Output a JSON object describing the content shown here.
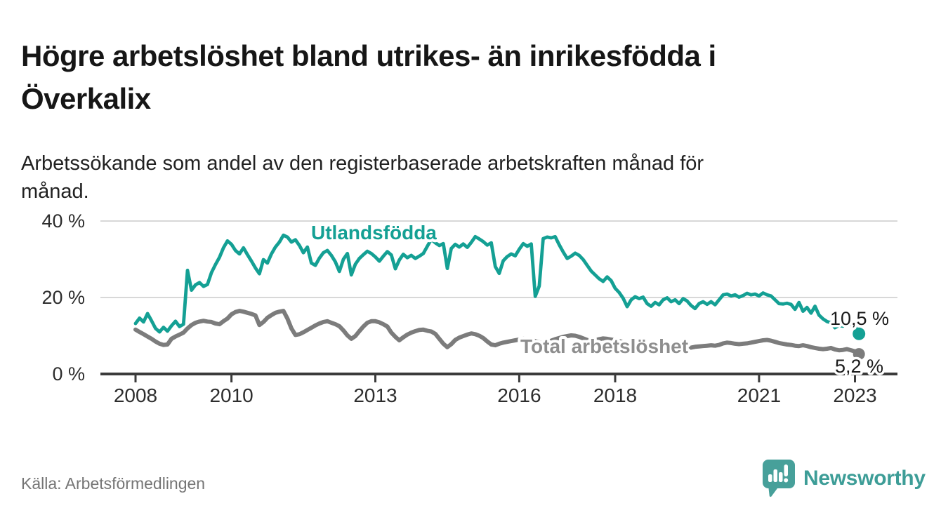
{
  "title": {
    "line1": "Högre arbetslöshet bland utrikes- än inrikesfödda i",
    "line2": "Överkalix"
  },
  "subtitle": {
    "line1": "Arbetssökande som andel av den registerbaserade arbetskraften månad för",
    "line2": "månad."
  },
  "source": "Källa: Arbetsförmedlingen",
  "branding": {
    "name": "Newsworthy",
    "icon": "newsworthy-speech-bubble-barchart-icon",
    "color": "#3d9d97",
    "icon_color": "#47a09a"
  },
  "colors": {
    "accent_teal": "#14a094",
    "line_gray": "#7c7c7c",
    "label_gray": "#8e8e8e",
    "axis": "#3b3b3b",
    "gridline": "#d8d8d8",
    "value_label": "#1a1a1a",
    "tick_label": "#2d2d2d"
  },
  "chart_data": {
    "type": "line",
    "unit": "%",
    "frequency": "monthly",
    "x_start": "2008-01",
    "x_end": "2023-02",
    "ylim": [
      0,
      44
    ],
    "grid": "horizontal-only",
    "legend_position": "inline-labels",
    "y_ticks": [
      {
        "label": "0 %",
        "value": 0
      },
      {
        "label": "20 %",
        "value": 20
      },
      {
        "label": "40 %",
        "value": 40
      }
    ],
    "x_ticks": [
      {
        "label": "2008",
        "year": 2008
      },
      {
        "label": "2010",
        "year": 2010
      },
      {
        "label": "2013",
        "year": 2013
      },
      {
        "label": "2016",
        "year": 2016
      },
      {
        "label": "2018",
        "year": 2018
      },
      {
        "label": "2021",
        "year": 2021
      },
      {
        "label": "2023",
        "year": 2023
      }
    ],
    "series": [
      {
        "name": "Total arbetslöshet",
        "color": "#7c7c7c",
        "label_color": "#8e8e8e",
        "end_value": 5.2,
        "end_label": "5,2 %",
        "values": [
          11.6,
          11.0,
          10.4,
          9.8,
          9.2,
          8.5,
          7.9,
          7.6,
          7.7,
          9.2,
          9.8,
          10.3,
          10.8,
          11.9,
          12.8,
          13.4,
          13.7,
          13.9,
          13.7,
          13.6,
          13.2,
          13.0,
          13.8,
          14.5,
          15.6,
          16.2,
          16.5,
          16.3,
          16.0,
          15.7,
          15.3,
          12.8,
          13.6,
          14.7,
          15.4,
          16.0,
          16.3,
          16.5,
          14.5,
          11.9,
          10.2,
          10.4,
          10.9,
          11.5,
          12.1,
          12.7,
          13.2,
          13.6,
          13.8,
          13.4,
          13.0,
          12.5,
          11.4,
          10.1,
          9.2,
          9.9,
          11.2,
          12.4,
          13.4,
          13.8,
          13.8,
          13.5,
          13.0,
          12.4,
          10.8,
          9.7,
          8.8,
          9.6,
          10.3,
          10.8,
          11.2,
          11.5,
          11.6,
          11.3,
          11.1,
          10.5,
          9.2,
          7.9,
          7.0,
          7.8,
          8.9,
          9.5,
          9.9,
          10.3,
          10.6,
          10.4,
          10.0,
          9.4,
          8.5,
          7.7,
          7.5,
          7.9,
          8.2,
          8.4,
          8.6,
          8.8,
          9.0,
          9.2,
          9.1,
          8.9,
          8.6,
          8.3,
          8.0,
          8.3,
          8.7,
          9.1,
          9.4,
          9.7,
          9.9,
          10.1,
          10.0,
          9.7,
          9.3,
          8.9,
          8.6,
          8.8,
          9.1,
          9.3,
          9.2,
          9.0,
          8.8,
          8.6,
          8.3,
          8.0,
          7.7,
          7.4,
          7.2,
          7.4,
          7.6,
          7.8,
          7.7,
          7.6,
          7.5,
          7.4,
          7.2,
          7.0,
          6.9,
          6.8,
          6.7,
          6.9,
          7.1,
          7.2,
          7.3,
          7.4,
          7.5,
          7.4,
          7.6,
          8.0,
          8.2,
          8.1,
          7.9,
          7.8,
          7.9,
          8.0,
          8.2,
          8.4,
          8.6,
          8.8,
          8.9,
          8.7,
          8.4,
          8.1,
          7.9,
          7.7,
          7.6,
          7.4,
          7.3,
          7.5,
          7.3,
          7.0,
          6.8,
          6.6,
          6.5,
          6.6,
          6.8,
          6.4,
          6.2,
          6.3,
          6.5,
          6.2,
          5.9,
          5.2
        ]
      },
      {
        "name": "Utlandsfödda",
        "color": "#14a094",
        "label_color": "#14a094",
        "end_value": 10.5,
        "end_label": "10,5 %",
        "values": [
          13.2,
          14.6,
          13.6,
          15.8,
          13.9,
          11.9,
          11.0,
          12.2,
          11.2,
          12.6,
          13.8,
          12.4,
          13.0,
          27.1,
          21.9,
          23.3,
          23.9,
          22.9,
          23.4,
          26.5,
          28.6,
          30.5,
          33.0,
          34.8,
          33.9,
          32.3,
          31.4,
          33.0,
          31.2,
          29.5,
          27.7,
          26.2,
          29.9,
          29.0,
          31.4,
          33.2,
          34.5,
          36.3,
          35.8,
          34.5,
          35.1,
          33.6,
          31.7,
          33.2,
          29.0,
          28.4,
          30.3,
          31.7,
          32.3,
          31.0,
          29.3,
          26.8,
          30.0,
          31.5,
          25.9,
          28.7,
          30.2,
          31.2,
          32.1,
          31.5,
          30.6,
          29.5,
          30.8,
          32.0,
          31.1,
          27.5,
          29.8,
          31.3,
          30.4,
          31.0,
          30.2,
          30.8,
          31.5,
          33.4,
          35.2,
          34.3,
          33.6,
          34.1,
          27.6,
          32.8,
          33.9,
          33.2,
          34.0,
          33.1,
          34.4,
          35.9,
          35.3,
          34.6,
          33.7,
          34.3,
          28.1,
          26.3,
          29.6,
          30.7,
          31.4,
          30.9,
          32.6,
          34.1,
          33.4,
          34.0,
          20.3,
          23.0,
          35.4,
          35.8,
          35.6,
          35.9,
          33.8,
          31.9,
          30.2,
          30.8,
          31.6,
          31.0,
          29.9,
          28.4,
          26.9,
          25.9,
          24.9,
          24.2,
          25.4,
          24.4,
          22.4,
          21.3,
          19.8,
          17.6,
          19.4,
          20.2,
          19.7,
          20.1,
          18.4,
          17.7,
          18.7,
          18.1,
          19.4,
          19.9,
          18.9,
          19.4,
          18.4,
          19.7,
          19.1,
          17.9,
          17.1,
          18.4,
          18.9,
          18.2,
          18.9,
          18.1,
          19.4,
          20.7,
          20.9,
          20.4,
          20.7,
          20.1,
          20.5,
          21.1,
          20.7,
          20.9,
          20.4,
          21.2,
          20.7,
          20.4,
          19.4,
          18.4,
          18.3,
          18.5,
          18.2,
          16.9,
          18.7,
          16.4,
          17.4,
          15.9,
          17.7,
          15.4,
          14.4,
          13.7,
          13.4,
          12.1,
          12.7,
          12.5,
          13.2,
          12.9,
          12.4,
          10.5
        ]
      }
    ]
  }
}
